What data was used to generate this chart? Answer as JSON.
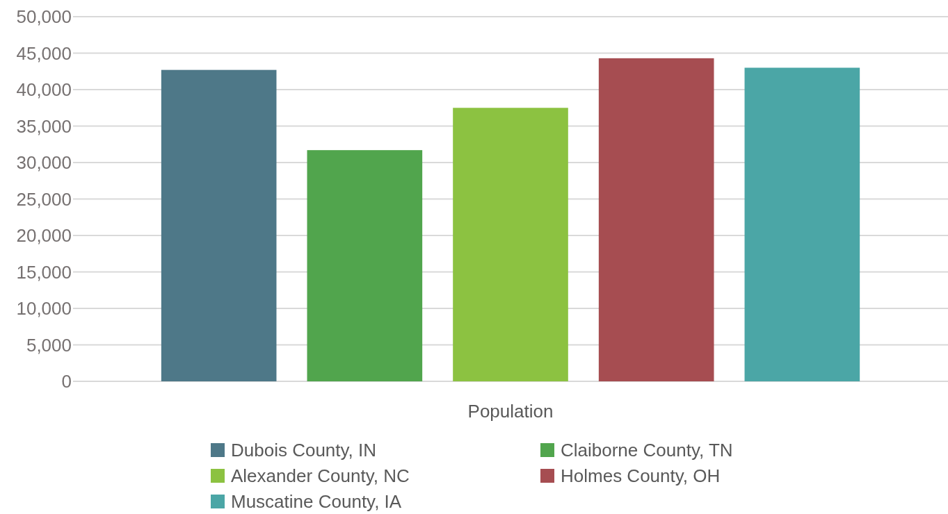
{
  "chart_data": {
    "type": "bar",
    "categories": [
      "Population"
    ],
    "series": [
      {
        "name": "Dubois County, IN",
        "color": "#4e7888",
        "values": [
          42700
        ]
      },
      {
        "name": "Claiborne County, TN",
        "color": "#51a54d",
        "values": [
          31700
        ]
      },
      {
        "name": "Alexander County, NC",
        "color": "#8cc241",
        "values": [
          37500
        ]
      },
      {
        "name": "Holmes County, OH",
        "color": "#a64d51",
        "values": [
          44300
        ]
      },
      {
        "name": "Muscatine County, IA",
        "color": "#4ba6a6",
        "values": [
          43000
        ]
      }
    ],
    "ylim": [
      0,
      50000
    ],
    "yticks": [
      {
        "value": 0,
        "label": "0"
      },
      {
        "value": 5000,
        "label": "5,000"
      },
      {
        "value": 10000,
        "label": "10,000"
      },
      {
        "value": 15000,
        "label": "15,000"
      },
      {
        "value": 20000,
        "label": "20,000"
      },
      {
        "value": 25000,
        "label": "25,000"
      },
      {
        "value": 30000,
        "label": "30,000"
      },
      {
        "value": 35000,
        "label": "35,000"
      },
      {
        "value": 40000,
        "label": "40,000"
      },
      {
        "value": 45000,
        "label": "45,000"
      },
      {
        "value": 50000,
        "label": "50,000"
      }
    ],
    "grid": "y",
    "legend": "bottom"
  }
}
